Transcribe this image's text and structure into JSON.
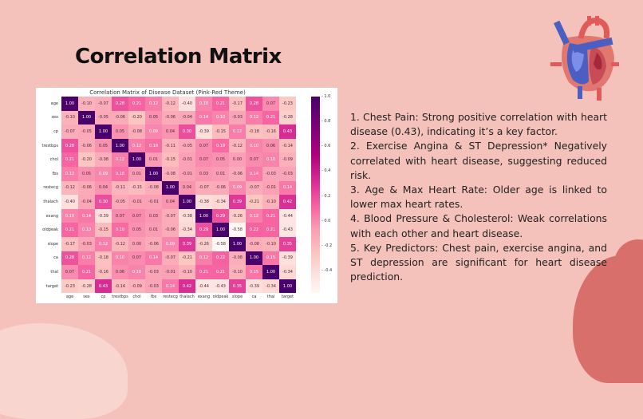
{
  "slide": {
    "title": "Correlation Matrix",
    "background_color": "#f4c1bb"
  },
  "notes": [
    "1. Chest Pain: Strong positive correlation with heart disease (0.43), indicating it’s a key factor.",
    "2. Exercise Angina & ST Depression* Negatively correlated with heart disease, suggesting reduced risk.",
    "3. Age & Max Heart Rate: Older age is linked to lower max heart rates.",
    "4. Blood Pressure & Cholesterol: Weak correlations with each other and heart disease.",
    "5. Key Predictors: Chest pain, exercise angina, and ST depression are significant for heart disease prediction."
  ],
  "decor": {
    "heart_icon": "anatomical-heart-icon"
  },
  "chart_data": {
    "type": "heatmap",
    "title": "Correlation Matrix of Disease Dataset (Pink-Red Theme)",
    "xlabel": "",
    "ylabel": "",
    "categories": [
      "age",
      "sex",
      "cp",
      "trestbps",
      "chol",
      "fbs",
      "restecg",
      "thalach",
      "exang",
      "oldpeak",
      "slope",
      "ca",
      "thal",
      "target"
    ],
    "values": [
      [
        1.0,
        -0.1,
        -0.07,
        0.28,
        0.21,
        0.12,
        -0.12,
        -0.4,
        0.1,
        0.21,
        -0.17,
        0.28,
        0.07,
        -0.23
      ],
      [
        -0.1,
        1.0,
        -0.05,
        -0.06,
        -0.2,
        0.05,
        -0.06,
        -0.04,
        0.14,
        0.1,
        -0.03,
        0.12,
        0.21,
        -0.28
      ],
      [
        -0.07,
        -0.05,
        1.0,
        0.05,
        -0.08,
        0.09,
        0.04,
        0.3,
        -0.39,
        -0.15,
        0.12,
        -0.18,
        -0.16,
        0.43
      ],
      [
        0.28,
        -0.06,
        0.05,
        1.0,
        0.12,
        0.18,
        -0.11,
        -0.05,
        0.07,
        0.19,
        -0.12,
        0.1,
        0.06,
        -0.14
      ],
      [
        0.21,
        -0.2,
        -0.08,
        0.12,
        1.0,
        0.01,
        -0.15,
        -0.01,
        0.07,
        0.05,
        -0.0,
        0.07,
        0.1,
        -0.09
      ],
      [
        0.12,
        0.05,
        0.09,
        0.18,
        0.01,
        1.0,
        -0.08,
        -0.01,
        0.03,
        0.01,
        -0.06,
        0.14,
        -0.03,
        -0.03
      ],
      [
        -0.12,
        -0.06,
        0.04,
        -0.11,
        -0.15,
        -0.08,
        1.0,
        0.04,
        -0.07,
        -0.06,
        0.09,
        -0.07,
        -0.01,
        0.14
      ],
      [
        -0.4,
        -0.04,
        0.3,
        -0.05,
        -0.01,
        -0.01,
        0.04,
        1.0,
        -0.38,
        -0.34,
        0.39,
        -0.21,
        -0.1,
        0.42
      ],
      [
        0.1,
        0.14,
        -0.39,
        0.07,
        0.07,
        0.03,
        -0.07,
        -0.38,
        1.0,
        0.29,
        -0.26,
        0.12,
        0.21,
        -0.44
      ],
      [
        0.21,
        0.1,
        -0.15,
        0.19,
        0.05,
        0.01,
        -0.06,
        -0.34,
        0.29,
        1.0,
        -0.58,
        0.22,
        0.21,
        -0.43
      ],
      [
        -0.17,
        -0.03,
        0.12,
        -0.12,
        -0.0,
        -0.06,
        0.09,
        0.39,
        -0.26,
        -0.58,
        1.0,
        -0.08,
        -0.1,
        0.35
      ],
      [
        0.28,
        0.12,
        -0.18,
        0.1,
        0.07,
        0.14,
        -0.07,
        -0.21,
        0.12,
        0.22,
        -0.08,
        1.0,
        0.15,
        -0.39
      ],
      [
        0.07,
        0.21,
        -0.16,
        0.06,
        0.1,
        -0.03,
        -0.01,
        -0.1,
        0.21,
        0.21,
        -0.1,
        0.15,
        1.0,
        -0.34
      ],
      [
        -0.23,
        -0.28,
        0.43,
        -0.14,
        -0.09,
        -0.03,
        0.14,
        0.42,
        -0.44,
        -0.43,
        0.35,
        -0.39,
        -0.34,
        1.0
      ]
    ],
    "colorbar": {
      "ticks": [
        1.0,
        0.8,
        0.6,
        0.4,
        0.2,
        0.0,
        -0.2,
        -0.4
      ],
      "range": [
        -0.58,
        1.0
      ],
      "colormap": "RdPu"
    },
    "annotations": true,
    "grid": false,
    "legend_position": "right (colorbar)"
  }
}
